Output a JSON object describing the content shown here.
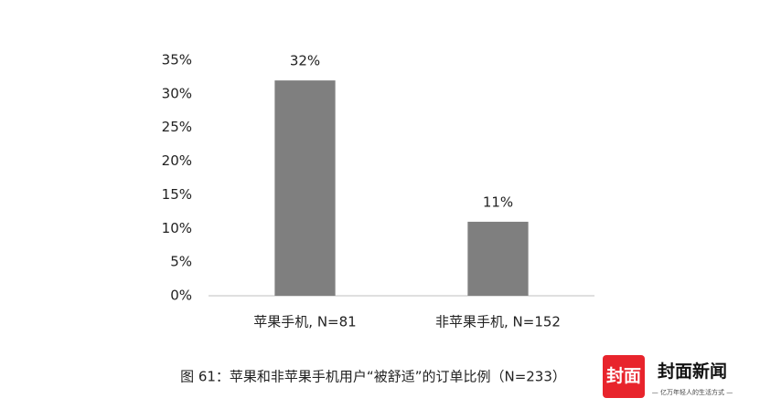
{
  "chart_data": {
    "type": "bar",
    "caption": "图 61：苹果和非苹果手机用户“被舒适”的订单比例（N=233）",
    "categories": [
      "苹果手机, N=81",
      "非苹果手机, N=152"
    ],
    "values": [
      32,
      11
    ],
    "value_labels": [
      "32%",
      "11%"
    ],
    "color": "#7f7f7f",
    "ylim": [
      0,
      35
    ],
    "yticks": [
      {
        "value": 0,
        "label": "0%"
      },
      {
        "value": 5,
        "label": "5%"
      },
      {
        "value": 10,
        "label": "10%"
      },
      {
        "value": 15,
        "label": "15%"
      },
      {
        "value": 20,
        "label": "20%"
      },
      {
        "value": 25,
        "label": "25%"
      },
      {
        "value": 30,
        "label": "30%"
      },
      {
        "value": 35,
        "label": "35%"
      }
    ],
    "grid": false
  },
  "watermark": {
    "badge": "封面",
    "name": "封面新闻",
    "slogan": "— 亿万年轻人的生活方式 —"
  }
}
